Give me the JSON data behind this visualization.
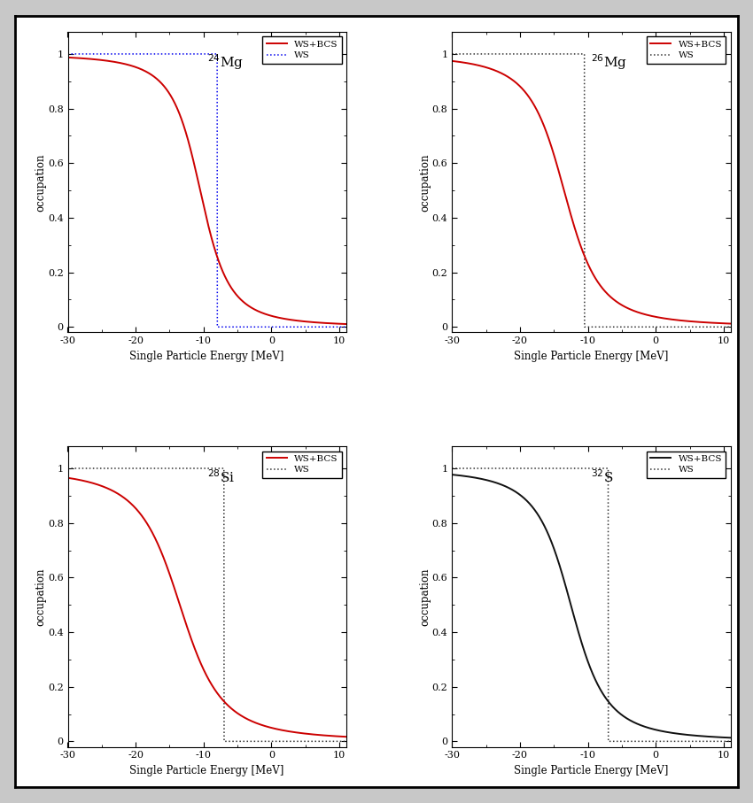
{
  "panels": [
    {
      "nucleus_label_mass": "24",
      "nucleus_label_elem": "Mg",
      "fermi_energy": -8.0,
      "bcs_mu": -10.5,
      "bcs_delta": 4.5,
      "ws_fermi": -8.0,
      "ws_color": "#0000ee",
      "bcs_color": "#cc0000",
      "ws_linestyle": "dotted",
      "bcs_linestyle": "solid"
    },
    {
      "nucleus_label_mass": "26",
      "nucleus_label_elem": "Mg",
      "fermi_energy": -10.5,
      "bcs_mu": -13.5,
      "bcs_delta": 5.5,
      "ws_fermi": -10.5,
      "ws_color": "#333333",
      "bcs_color": "#cc0000",
      "ws_linestyle": "dotted",
      "bcs_linestyle": "solid"
    },
    {
      "nucleus_label_mass": "28",
      "nucleus_label_elem": "Si",
      "fermi_energy": -7.0,
      "bcs_mu": -13.5,
      "bcs_delta": 6.5,
      "ws_fermi": -7.0,
      "ws_color": "#333333",
      "bcs_color": "#cc0000",
      "ws_linestyle": "dotted",
      "bcs_linestyle": "solid"
    },
    {
      "nucleus_label_mass": "32",
      "nucleus_label_elem": "S",
      "fermi_energy": -7.0,
      "bcs_mu": -12.5,
      "bcs_delta": 5.5,
      "ws_fermi": -7.0,
      "ws_color": "#333333",
      "bcs_color": "#111111",
      "ws_linestyle": "dotted",
      "bcs_linestyle": "solid"
    }
  ],
  "xmin": -30,
  "xmax": 11,
  "ymin": 0,
  "ymax": 1.0,
  "xlabel": "Single Particle Energy [MeV]",
  "ylabel": "occupation",
  "legend_bcs": "WS+BCS",
  "legend_ws": "WS",
  "bg_color": "#ffffff",
  "fig_bg_color": "#ffffff",
  "outer_bg": "#c8c8c8"
}
